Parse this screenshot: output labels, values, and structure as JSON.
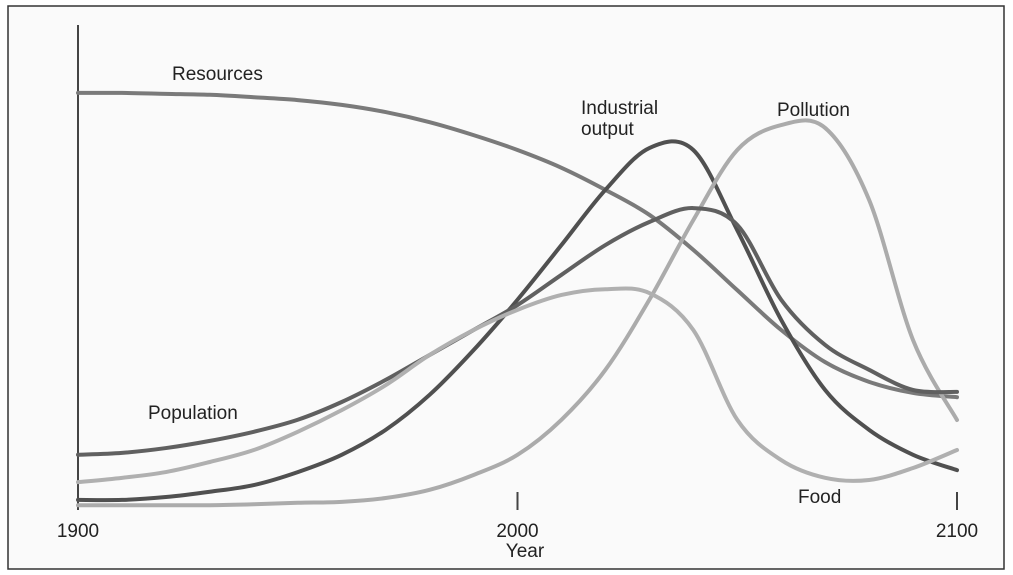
{
  "chart_data": {
    "type": "line",
    "x": [
      1900,
      1910,
      1920,
      1930,
      1940,
      1950,
      1960,
      1970,
      1980,
      1990,
      2000,
      2010,
      2020,
      2030,
      2040,
      2050,
      2060,
      2070,
      2080,
      2090,
      2100
    ],
    "xlim": [
      1900,
      2100
    ],
    "xticks": [
      1900,
      2000,
      2100
    ],
    "xlabel": "Year",
    "ylim": [
      0,
      100
    ],
    "series": [
      {
        "name": "Resources",
        "color": "#7a7a7a",
        "values": [
          86.9,
          86.9,
          86.7,
          86.5,
          86.0,
          85.4,
          84.4,
          82.9,
          80.8,
          78.1,
          75.0,
          71.3,
          66.7,
          61.5,
          54.2,
          45.8,
          37.5,
          30.8,
          26.7,
          24.4,
          23.5
        ]
      },
      {
        "name": "Industrial output",
        "color": "#505050",
        "values": [
          2.1,
          2.1,
          2.7,
          3.8,
          5.2,
          7.9,
          11.5,
          16.7,
          24.0,
          33.3,
          43.8,
          55.2,
          66.7,
          75.4,
          75.0,
          58.3,
          39.6,
          25.0,
          16.7,
          11.5,
          8.3
        ]
      },
      {
        "name": "Pollution",
        "color": "#ababab",
        "values": [
          1.0,
          1.0,
          1.0,
          1.0,
          1.2,
          1.5,
          1.7,
          2.5,
          4.2,
          7.3,
          11.5,
          18.8,
          29.2,
          43.8,
          60.4,
          75.0,
          80.2,
          79.6,
          64.6,
          35.4,
          18.75
        ]
      },
      {
        "name": "Population",
        "color": "#606060",
        "values": [
          11.5,
          11.9,
          12.9,
          14.4,
          16.3,
          18.8,
          22.5,
          27.1,
          32.3,
          37.5,
          42.7,
          49.0,
          55.2,
          60.0,
          62.9,
          59.4,
          43.8,
          34.4,
          29.2,
          25.0,
          24.6
        ]
      },
      {
        "name": "Food",
        "color": "#b0b0b0",
        "values": [
          5.8,
          6.7,
          7.9,
          10.0,
          12.5,
          16.3,
          20.8,
          26.0,
          32.3,
          37.5,
          41.7,
          44.8,
          46.0,
          45.2,
          37.5,
          18.8,
          10.4,
          6.7,
          6.25,
          8.75,
          12.5
        ]
      }
    ]
  }
}
